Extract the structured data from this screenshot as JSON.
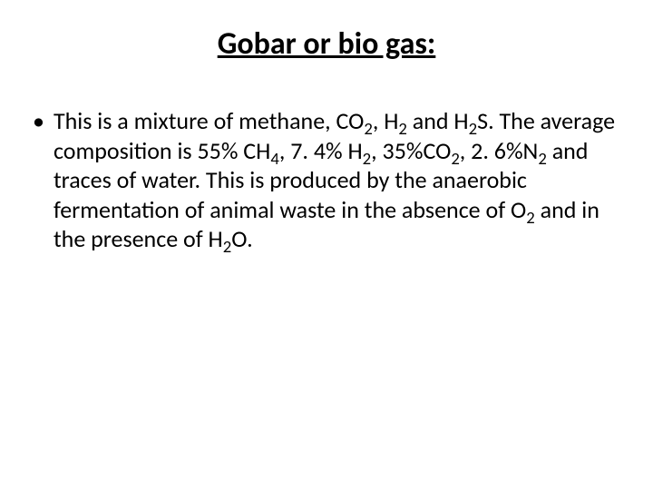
{
  "title": {
    "text": "Gobar or bio gas:",
    "fontsize": 34,
    "color": "#000000",
    "underline": true,
    "bold": true
  },
  "bullet": {
    "glyph": "•",
    "fontsize": 26,
    "color": "#000000"
  },
  "body": {
    "fontsize": 26,
    "color": "#000000",
    "segments": [
      {
        "t": "This is a mixture of methane, CO"
      },
      {
        "t": "2",
        "sub": true
      },
      {
        "t": ", H"
      },
      {
        "t": "2",
        "sub": true
      },
      {
        "t": " and H"
      },
      {
        "t": "2",
        "sub": true
      },
      {
        "t": "S. The average composition is 55% CH"
      },
      {
        "t": "4",
        "sub": true
      },
      {
        "t": ", 7. 4% H"
      },
      {
        "t": "2",
        "sub": true
      },
      {
        "t": ", 35%CO"
      },
      {
        "t": "2",
        "sub": true
      },
      {
        "t": ", 2. 6%N"
      },
      {
        "t": "2",
        "sub": true
      },
      {
        "t": " and traces of water. This is produced by the anaerobic fermentation of animal waste in the absence of O"
      },
      {
        "t": "2",
        "sub": true
      },
      {
        "t": " and in the presence of H"
      },
      {
        "t": "2",
        "sub": true
      },
      {
        "t": "O."
      }
    ]
  },
  "background_color": "#ffffff"
}
